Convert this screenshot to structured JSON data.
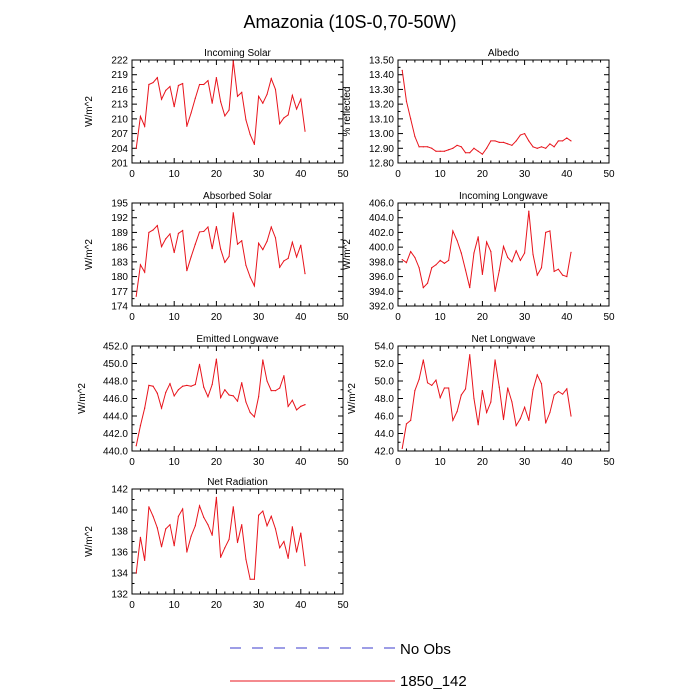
{
  "figure": {
    "title": "Amazonia (10S-0,70-50W)"
  },
  "legend": {
    "items": [
      {
        "label": "No Obs",
        "color": "#3b3bcc",
        "dash": true
      },
      {
        "label": "1850_142",
        "color": "#e8141c",
        "dash": false
      }
    ]
  },
  "colors": {
    "model": "#e8141c",
    "obs": "#3b3bcc",
    "axis": "#000000"
  },
  "chart_data": [
    {
      "type": "line",
      "title": "Incoming Solar",
      "ylabel": "W/m^2",
      "xlim": [
        0,
        50
      ],
      "ylim": [
        201,
        222
      ],
      "xticks": [
        0,
        10,
        20,
        30,
        40,
        50
      ],
      "yticks": [
        "201",
        "204",
        "207",
        "210",
        "213",
        "216",
        "219",
        "222"
      ],
      "x": [
        1,
        2,
        3,
        4,
        5,
        6,
        7,
        8,
        9,
        10,
        11,
        12,
        13,
        14,
        15,
        16,
        17,
        18,
        19,
        20,
        21,
        22,
        23,
        24,
        25,
        26,
        27,
        28,
        29,
        30,
        31,
        32,
        33,
        34,
        35,
        36,
        37,
        38,
        39,
        40,
        41
      ],
      "values": [
        204.0,
        210.5,
        208.5,
        217.0,
        217.4,
        218.4,
        214.0,
        215.8,
        216.6,
        212.5,
        216.8,
        217.2,
        208.5,
        211.2,
        214.2,
        217.0,
        217.0,
        217.8,
        213.2,
        218.4,
        213.5,
        210.6,
        211.8,
        221.8,
        214.6,
        215.4,
        209.8,
        206.8,
        204.8,
        214.6,
        213.2,
        215.0,
        218.2,
        216.0,
        209.0,
        210.2,
        210.8,
        214.8,
        212.0,
        214.0,
        207.5
      ]
    },
    {
      "type": "line",
      "title": "Albedo",
      "ylabel": "% reflected",
      "xlim": [
        0,
        50
      ],
      "ylim": [
        12.8,
        13.5
      ],
      "xticks": [
        0,
        10,
        20,
        30,
        40,
        50
      ],
      "yticks": [
        "12.80",
        "12.90",
        "13.00",
        "13.10",
        "13.20",
        "13.30",
        "13.40",
        "13.50"
      ],
      "x": [
        1,
        2,
        3,
        4,
        5,
        6,
        7,
        8,
        9,
        10,
        11,
        12,
        13,
        14,
        15,
        16,
        17,
        18,
        19,
        20,
        21,
        22,
        23,
        24,
        25,
        26,
        27,
        28,
        29,
        30,
        31,
        32,
        33,
        34,
        35,
        36,
        37,
        38,
        39,
        40,
        41
      ],
      "values": [
        13.43,
        13.22,
        13.1,
        12.98,
        12.91,
        12.91,
        12.91,
        12.9,
        12.88,
        12.88,
        12.88,
        12.89,
        12.9,
        12.92,
        12.91,
        12.87,
        12.87,
        12.9,
        12.88,
        12.86,
        12.9,
        12.95,
        12.95,
        12.94,
        12.94,
        12.93,
        12.92,
        12.95,
        12.99,
        13.0,
        12.95,
        12.91,
        12.9,
        12.91,
        12.9,
        12.93,
        12.91,
        12.95,
        12.95,
        12.97,
        12.95
      ]
    },
    {
      "type": "line",
      "title": "Absorbed Solar",
      "ylabel": "W/m^2",
      "xlim": [
        0,
        50
      ],
      "ylim": [
        174,
        195
      ],
      "xticks": [
        0,
        10,
        20,
        30,
        40,
        50
      ],
      "yticks": [
        "174",
        "177",
        "180",
        "183",
        "186",
        "189",
        "192",
        "195"
      ],
      "x": [
        1,
        2,
        3,
        4,
        5,
        6,
        7,
        8,
        9,
        10,
        11,
        12,
        13,
        14,
        15,
        16,
        17,
        18,
        19,
        20,
        21,
        22,
        23,
        24,
        25,
        26,
        27,
        28,
        29,
        30,
        31,
        32,
        33,
        34,
        35,
        36,
        37,
        38,
        39,
        40,
        41
      ],
      "values": [
        176.0,
        182.4,
        180.9,
        189.0,
        189.5,
        190.4,
        186.1,
        187.7,
        188.7,
        184.9,
        188.8,
        189.4,
        181.2,
        184.0,
        186.6,
        189.1,
        189.2,
        190.1,
        185.7,
        190.2,
        185.6,
        182.9,
        184.1,
        193.0,
        186.6,
        187.3,
        182.3,
        179.9,
        178.1,
        186.8,
        185.5,
        187.2,
        190.1,
        187.9,
        181.9,
        183.2,
        183.7,
        187.0,
        184.0,
        186.4,
        180.6
      ]
    },
    {
      "type": "line",
      "title": "Incoming Longwave",
      "ylabel": "W/m^2",
      "xlim": [
        0,
        50
      ],
      "ylim": [
        392.0,
        406.0
      ],
      "xticks": [
        0,
        10,
        20,
        30,
        40,
        50
      ],
      "yticks": [
        "392.0",
        "394.0",
        "396.0",
        "398.0",
        "400.0",
        "402.0",
        "404.0",
        "406.0"
      ],
      "x": [
        1,
        2,
        3,
        4,
        5,
        6,
        7,
        8,
        9,
        10,
        11,
        12,
        13,
        14,
        15,
        16,
        17,
        18,
        19,
        20,
        21,
        22,
        23,
        24,
        25,
        26,
        27,
        28,
        29,
        30,
        31,
        32,
        33,
        34,
        35,
        36,
        37,
        38,
        39,
        40,
        41
      ],
      "values": [
        398.3,
        397.9,
        399.4,
        398.6,
        397.2,
        394.5,
        395.1,
        397.2,
        397.6,
        398.2,
        397.8,
        398.2,
        402.2,
        400.9,
        399.2,
        396.9,
        394.5,
        399.2,
        401.4,
        396.3,
        400.7,
        399.4,
        394.0,
        396.8,
        400.1,
        398.6,
        398.0,
        399.5,
        398.2,
        399.2,
        404.9,
        399.0,
        396.2,
        397.2,
        402.0,
        402.2,
        396.7,
        397.0,
        396.2,
        396.0,
        399.3
      ]
    },
    {
      "type": "line",
      "title": "Emitted Longwave",
      "ylabel": "W/m^2",
      "xlim": [
        0,
        50
      ],
      "ylim": [
        440.0,
        452.0
      ],
      "xticks": [
        0,
        10,
        20,
        30,
        40,
        50
      ],
      "yticks": [
        "440.0",
        "442.0",
        "444.0",
        "446.0",
        "448.0",
        "450.0",
        "452.0"
      ],
      "x": [
        1,
        2,
        3,
        4,
        5,
        6,
        7,
        8,
        9,
        10,
        11,
        12,
        13,
        14,
        15,
        16,
        17,
        18,
        19,
        20,
        21,
        22,
        23,
        24,
        25,
        26,
        27,
        28,
        29,
        30,
        31,
        32,
        33,
        34,
        35,
        36,
        37,
        38,
        39,
        40,
        41
      ],
      "values": [
        440.6,
        442.9,
        444.9,
        447.5,
        447.4,
        446.6,
        444.9,
        446.7,
        447.7,
        446.3,
        447.0,
        447.4,
        447.5,
        447.4,
        447.6,
        449.9,
        447.3,
        446.2,
        447.6,
        450.5,
        446.1,
        447.0,
        446.4,
        446.3,
        445.7,
        447.8,
        445.6,
        444.4,
        443.9,
        446.2,
        450.4,
        448.0,
        446.9,
        446.9,
        447.2,
        448.6,
        445.1,
        445.8,
        444.7,
        445.1,
        445.3
      ]
    },
    {
      "type": "line",
      "title": "Net Longwave",
      "ylabel": "W/m^2",
      "xlim": [
        0,
        50
      ],
      "ylim": [
        42.0,
        54.0
      ],
      "xticks": [
        0,
        10,
        20,
        30,
        40,
        50
      ],
      "yticks": [
        "42.0",
        "44.0",
        "46.0",
        "48.0",
        "50.0",
        "52.0",
        "54.0"
      ],
      "x": [
        1,
        2,
        3,
        4,
        5,
        6,
        7,
        8,
        9,
        10,
        11,
        12,
        13,
        14,
        15,
        16,
        17,
        18,
        19,
        20,
        21,
        22,
        23,
        24,
        25,
        26,
        27,
        28,
        29,
        30,
        31,
        32,
        33,
        34,
        35,
        36,
        37,
        38,
        39,
        40,
        41
      ],
      "values": [
        42.3,
        45.1,
        45.5,
        48.9,
        50.2,
        52.4,
        49.8,
        49.5,
        50.1,
        48.1,
        49.2,
        49.2,
        45.5,
        46.5,
        48.4,
        49.1,
        53.0,
        48.0,
        45.0,
        48.9,
        46.4,
        47.6,
        52.4,
        49.3,
        45.6,
        49.2,
        47.6,
        44.9,
        45.7,
        47.0,
        45.5,
        49.0,
        50.7,
        49.7,
        45.2,
        46.4,
        48.4,
        48.8,
        48.5,
        49.1,
        46.0
      ]
    },
    {
      "type": "line",
      "title": "Net Radiation",
      "ylabel": "W/m^2",
      "xlim": [
        0,
        50
      ],
      "ylim": [
        132,
        142
      ],
      "xticks": [
        0,
        10,
        20,
        30,
        40,
        50
      ],
      "yticks": [
        "132",
        "134",
        "136",
        "138",
        "140",
        "142"
      ],
      "x": [
        1,
        2,
        3,
        4,
        5,
        6,
        7,
        8,
        9,
        10,
        11,
        12,
        13,
        14,
        15,
        16,
        17,
        18,
        19,
        20,
        21,
        22,
        23,
        24,
        25,
        26,
        27,
        28,
        29,
        30,
        31,
        32,
        33,
        34,
        35,
        36,
        37,
        38,
        39,
        40,
        41
      ],
      "values": [
        134.0,
        137.4,
        135.2,
        140.3,
        139.4,
        138.3,
        136.5,
        138.2,
        138.6,
        136.6,
        139.4,
        140.1,
        136.0,
        137.5,
        138.5,
        140.4,
        139.3,
        138.6,
        137.6,
        141.2,
        135.5,
        136.4,
        137.2,
        140.3,
        136.9,
        138.6,
        135.3,
        133.4,
        133.4,
        139.5,
        139.9,
        138.5,
        139.4,
        138.2,
        136.4,
        137.0,
        135.4,
        138.4,
        136.0,
        137.8,
        134.7
      ]
    }
  ]
}
